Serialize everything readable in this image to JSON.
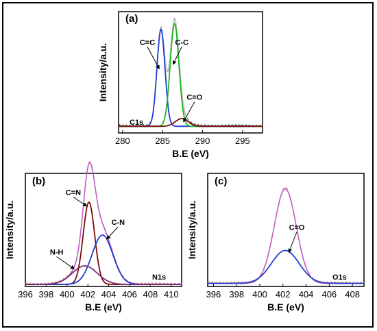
{
  "figure": {
    "chart_data": [
      {
        "id": "a",
        "type": "line",
        "panel_label": "(a)",
        "spectrum_label": "C1s",
        "xlabel": "B.E (eV)",
        "ylabel": "Intensity/a.u.",
        "xlim": [
          279.5,
          297.5
        ],
        "ylim": [
          0,
          1.1
        ],
        "xticks": [
          280,
          285,
          290,
          295
        ],
        "baseline": 0.06,
        "series": [
          {
            "label": "C=C",
            "color": "#1f3fd0",
            "center": 284.8,
            "height": 0.88,
            "sigma": 0.5
          },
          {
            "label": "C-C",
            "color": "#1db81d",
            "center": 286.5,
            "height": 0.93,
            "sigma": 0.55
          },
          {
            "label": "C=O",
            "color": "#7a0a0a",
            "center": 287.4,
            "height": 0.07,
            "sigma": 0.8
          }
        ],
        "envelope_color": "#bfbfbf",
        "raw_color": "#555555",
        "annotations": [
          {
            "text": "C=C",
            "x": 283.1,
            "y": 0.8,
            "ax": 284.6,
            "ay": 0.58
          },
          {
            "text": "C-C",
            "x": 287.4,
            "y": 0.8,
            "ax": 286.3,
            "ay": 0.62
          },
          {
            "text": "C=O",
            "x": 289.0,
            "y": 0.3,
            "ax": 287.6,
            "ay": 0.1
          }
        ]
      },
      {
        "id": "b",
        "type": "line",
        "panel_label": "(b)",
        "spectrum_label": "N1s",
        "xlabel": "B.E (eV)",
        "ylabel": "Intensity/a.u.",
        "xlim": [
          396,
          411
        ],
        "ylim": [
          0,
          1.1
        ],
        "xticks": [
          396,
          398,
          400,
          402,
          404,
          406,
          408,
          410
        ],
        "baseline": 0.02,
        "series": [
          {
            "label": "C=N",
            "color": "#7a0a0a",
            "center": 402.1,
            "height": 0.8,
            "sigma": 0.55
          },
          {
            "label": "C-N",
            "color": "#1f3fd0",
            "center": 403.4,
            "height": 0.48,
            "sigma": 1.0
          },
          {
            "label": "N-H",
            "color": "#7a2a7a",
            "center": 401.7,
            "height": 0.18,
            "sigma": 1.2
          }
        ],
        "envelope_color": "#c060c0",
        "raw_color": "#d08080",
        "annotations": [
          {
            "text": "C=N",
            "x": 400.6,
            "y": 0.89,
            "ax": 401.9,
            "ay": 0.78
          },
          {
            "text": "C-N",
            "x": 404.9,
            "y": 0.6,
            "ax": 403.8,
            "ay": 0.46
          },
          {
            "text": "N-H",
            "x": 399.0,
            "y": 0.31,
            "ax": 400.7,
            "ay": 0.17
          }
        ]
      },
      {
        "id": "c",
        "type": "line",
        "panel_label": "(c)",
        "spectrum_label": "O1s",
        "xlabel": "B.E (eV)",
        "ylabel": "Intensity/a.u.",
        "xlim": [
          395.5,
          409
        ],
        "ylim": [
          0,
          1.1
        ],
        "xticks": [
          396,
          398,
          400,
          402,
          404,
          406,
          408
        ],
        "baseline": 0.03,
        "series": [
          {
            "label": "C=O",
            "color": "#1f3fd0",
            "center": 402.2,
            "height": 0.32,
            "sigma": 1.2
          }
        ],
        "envelope_color": "#c060c0",
        "envelope_height": 0.92,
        "envelope_sigma": 0.95,
        "raw_color": "#d08080",
        "annotations": [
          {
            "text": "C=O",
            "x": 403.2,
            "y": 0.55,
            "ax": 402.5,
            "ay": 0.33
          }
        ]
      }
    ]
  }
}
